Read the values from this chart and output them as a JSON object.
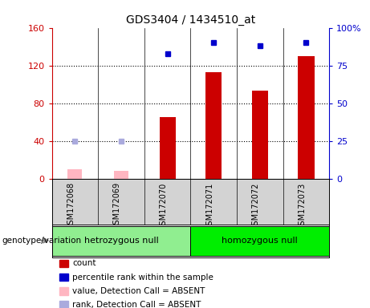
{
  "title": "GDS3404 / 1434510_at",
  "samples": [
    "GSM172068",
    "GSM172069",
    "GSM172070",
    "GSM172071",
    "GSM172072",
    "GSM172073"
  ],
  "count_values": [
    null,
    null,
    65,
    113,
    93,
    130
  ],
  "count_absent": [
    10,
    8,
    null,
    null,
    null,
    null
  ],
  "rank_values": [
    null,
    null,
    83,
    90,
    88,
    90
  ],
  "rank_absent": [
    25,
    25,
    null,
    null,
    null,
    null
  ],
  "ylim_left": [
    0,
    160
  ],
  "ylim_right": [
    0,
    100
  ],
  "yticks_left": [
    0,
    40,
    80,
    120,
    160
  ],
  "yticks_right": [
    0,
    25,
    50,
    75,
    100
  ],
  "yticklabels_left": [
    "0",
    "40",
    "80",
    "120",
    "160"
  ],
  "yticklabels_right": [
    "0",
    "25",
    "50",
    "75",
    "100%"
  ],
  "groups": [
    {
      "label": "hetrozygous null",
      "indices": [
        0,
        1,
        2
      ],
      "color": "#90ee90"
    },
    {
      "label": "homozygous null",
      "indices": [
        3,
        4,
        5
      ],
      "color": "#00ee00"
    }
  ],
  "group_label": "genotype/variation",
  "bar_width": 0.35,
  "count_color": "#cc0000",
  "count_absent_color": "#ffb6c1",
  "rank_color": "#0000cc",
  "rank_absent_color": "#aaaadd",
  "bg_color": "#d3d3d3",
  "legend": [
    {
      "color": "#cc0000",
      "label": "count"
    },
    {
      "color": "#0000cc",
      "label": "percentile rank within the sample"
    },
    {
      "color": "#ffb6c1",
      "label": "value, Detection Call = ABSENT"
    },
    {
      "color": "#aaaadd",
      "label": "rank, Detection Call = ABSENT"
    }
  ]
}
